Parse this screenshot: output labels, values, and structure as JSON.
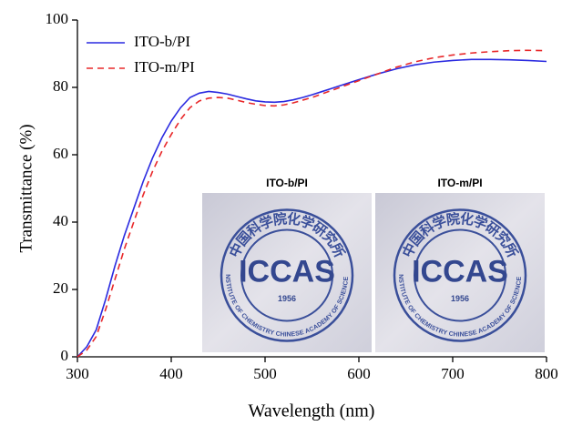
{
  "chart_data": {
    "type": "line",
    "xlabel": "Wavelength (nm)",
    "ylabel": "Transmittance (%)",
    "x": [
      300,
      310,
      320,
      330,
      340,
      350,
      360,
      370,
      380,
      390,
      400,
      410,
      420,
      430,
      440,
      450,
      460,
      470,
      480,
      490,
      500,
      510,
      520,
      530,
      540,
      550,
      560,
      570,
      580,
      590,
      600,
      620,
      640,
      660,
      680,
      700,
      720,
      740,
      760,
      780,
      800
    ],
    "series": [
      {
        "name": "ITO-b/PI",
        "color": "#2a2ae0",
        "dash": false,
        "values": [
          0,
          3,
          8,
          17,
          27,
          36,
          44,
          52,
          59,
          65,
          70,
          74,
          77,
          78.3,
          78.8,
          78.5,
          78,
          77.3,
          76.6,
          76,
          75.7,
          75.6,
          75.8,
          76.3,
          77,
          77.8,
          78.7,
          79.6,
          80.5,
          81.4,
          82.3,
          84,
          85.5,
          86.7,
          87.5,
          88,
          88.3,
          88.3,
          88.2,
          88,
          87.7
        ]
      },
      {
        "name": "ITO-m/PI",
        "color": "#e8282a",
        "dash": true,
        "values": [
          0,
          2,
          6,
          14,
          23,
          32,
          40,
          48,
          55,
          61,
          66,
          70.5,
          74,
          76,
          76.8,
          77,
          76.8,
          76.2,
          75.5,
          75,
          74.6,
          74.5,
          74.8,
          75.4,
          76.2,
          77,
          78,
          79,
          80,
          81,
          82,
          84,
          86,
          87.6,
          88.8,
          89.6,
          90.2,
          90.6,
          90.9,
          91,
          90.9
        ]
      }
    ],
    "xlim": [
      300,
      800
    ],
    "xticks": [
      300,
      400,
      500,
      600,
      700,
      800
    ],
    "ylim": [
      0,
      100
    ],
    "yticks": [
      0,
      20,
      40,
      60,
      80,
      100
    ],
    "legend": "upper left"
  },
  "inset": {
    "panels": [
      {
        "label": "ITO-b/PI",
        "ring_top": "中国科学院化学研究所",
        "ring_bottom": "INSTITUTE OF CHEMISTRY CHINESE ACADEMY OF SCIENCES",
        "logo": "ICCAS",
        "year": "1956"
      },
      {
        "label": "ITO-m/PI",
        "ring_top": "中国科学院化学研究所",
        "ring_bottom": "INSTITUTE OF CHEMISTRY CHINESE ACADEMY OF SCIENCES",
        "logo": "ICCAS",
        "year": "1956"
      }
    ]
  }
}
